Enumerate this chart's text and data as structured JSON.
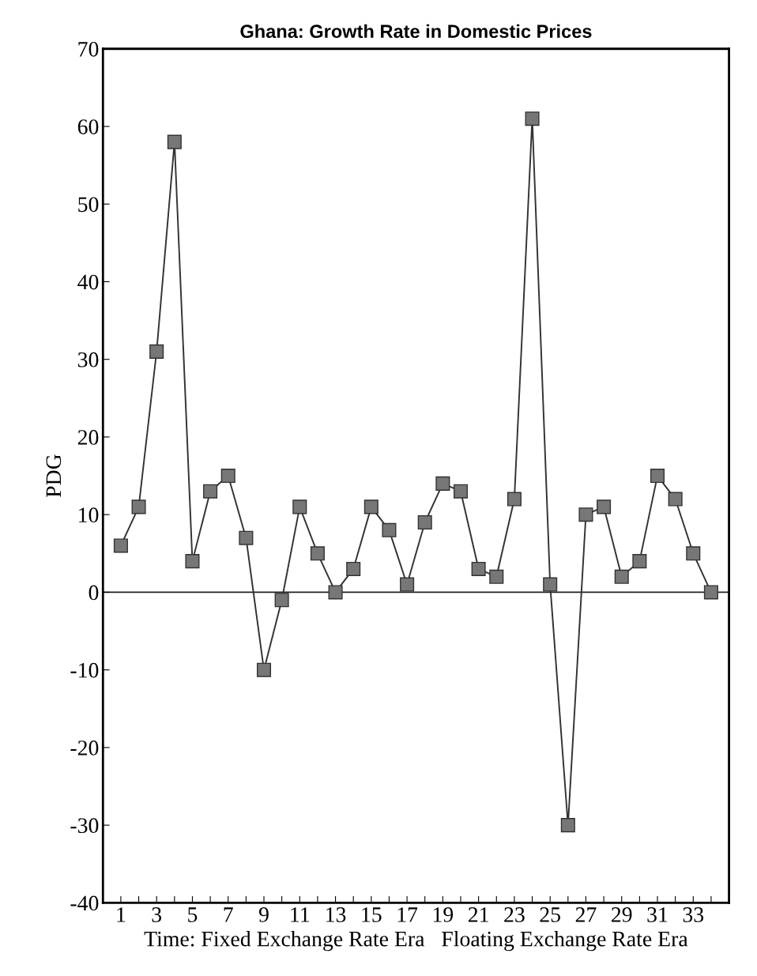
{
  "chart_data": {
    "type": "line",
    "title": "Ghana: Growth Rate in Domestic Prices",
    "xlabel": "Time: Fixed Exchange Rate Era   Floating Exchange Rate Era",
    "ylabel": "PDG",
    "x": [
      1,
      2,
      3,
      4,
      5,
      6,
      7,
      8,
      9,
      10,
      11,
      12,
      13,
      14,
      15,
      16,
      17,
      18,
      19,
      20,
      21,
      22,
      23,
      24,
      25,
      26,
      27,
      28,
      29,
      30,
      31,
      32,
      33,
      34
    ],
    "series": [
      {
        "color": "#333333",
        "values": [
          6,
          11,
          31,
          58,
          4,
          13,
          15,
          7,
          -10,
          -1,
          11,
          5,
          0,
          3,
          11,
          8,
          1,
          9,
          14,
          13,
          3,
          2,
          12,
          61,
          1,
          -30,
          10,
          11,
          2,
          4,
          15,
          12,
          5,
          0
        ]
      }
    ],
    "marker": "square",
    "line_style": "solid",
    "grid": false,
    "legend": false,
    "xlim": [
      0,
      35
    ],
    "ylim": [
      -40,
      70
    ],
    "xticks": [
      1,
      {
        "value": 2,
        "label": null
      },
      3,
      {
        "value": 4,
        "label": null
      },
      5,
      {
        "value": 6,
        "label": null
      },
      7,
      {
        "value": 8,
        "label": null
      },
      9,
      {
        "value": 10,
        "label": null
      },
      11,
      {
        "value": 12,
        "label": null
      },
      13,
      {
        "value": 14,
        "label": null
      },
      15,
      {
        "value": 16,
        "label": null
      },
      17,
      {
        "value": 18,
        "label": null
      },
      19,
      {
        "value": 20,
        "label": null
      },
      21,
      {
        "value": 22,
        "label": null
      },
      23,
      {
        "value": 24,
        "label": null
      },
      25,
      {
        "value": 26,
        "label": null
      },
      27,
      {
        "value": 28,
        "label": null
      },
      29,
      {
        "value": 30,
        "label": null
      },
      31,
      {
        "value": 32,
        "label": null
      },
      33,
      {
        "value": 34,
        "label": null
      }
    ],
    "yticks": [
      -40,
      -30,
      -20,
      -10,
      0,
      10,
      20,
      30,
      40,
      50,
      60,
      70
    ],
    "ref_lines": [
      {
        "axis": "y",
        "value": 0,
        "color": "#222222",
        "line_style": "solid"
      }
    ]
  }
}
